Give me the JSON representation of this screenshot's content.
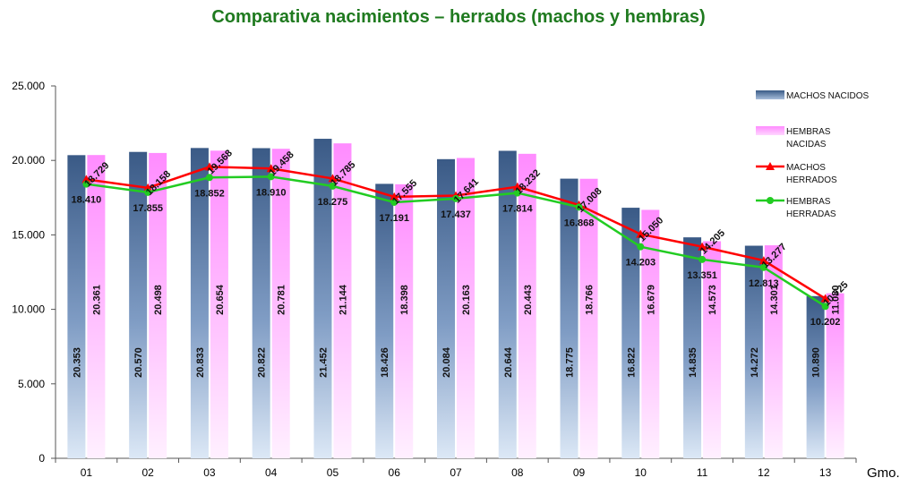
{
  "chart_data": {
    "type": "bar",
    "title": "Comparativa nacimientos – herrados (machos y hembras)",
    "xlabel": "Gmo.",
    "ylabel": "",
    "ylim": [
      0,
      25000
    ],
    "yticks": [
      0,
      5000,
      10000,
      15000,
      20000,
      25000
    ],
    "ytick_labels": [
      "0",
      "5.000",
      "10.000",
      "15.000",
      "20.000",
      "25.000"
    ],
    "categories": [
      "01",
      "02",
      "03",
      "04",
      "05",
      "06",
      "07",
      "08",
      "09",
      "10",
      "11",
      "12",
      "13"
    ],
    "legend_position": "right",
    "series": [
      {
        "name": "MACHOS NACIDOS",
        "kind": "bar",
        "color": "#3d5f8c",
        "values": [
          20353,
          20570,
          20833,
          20822,
          21452,
          18426,
          20084,
          20644,
          18775,
          16822,
          14835,
          14272,
          10890
        ],
        "labels": [
          "20.353",
          "20.570",
          "20.833",
          "20.822",
          "21.452",
          "18.426",
          "20.084",
          "20.644",
          "18.775",
          "16.822",
          "14.835",
          "14.272",
          "10.890"
        ]
      },
      {
        "name": "HEMBRAS NACIDAS",
        "kind": "bar",
        "color": "#ff8cff",
        "values": [
          20361,
          20498,
          20654,
          20781,
          21144,
          18398,
          20163,
          20443,
          18766,
          16679,
          14573,
          14301,
          11080
        ],
        "labels": [
          "20.361",
          "20.498",
          "20.654",
          "20.781",
          "21.144",
          "18.398",
          "20.163",
          "20.443",
          "18.766",
          "16.679",
          "14.573",
          "14.301",
          "11.080"
        ]
      },
      {
        "name": "MACHOS HERRADOS",
        "kind": "line",
        "color": "#ff0000",
        "values": [
          18729,
          18158,
          19568,
          19458,
          18785,
          17555,
          17641,
          18232,
          17008,
          15050,
          14205,
          13277,
          10725
        ],
        "labels": [
          "18.729",
          "18.158",
          "19.568",
          "19.458",
          "18.785",
          "17.555",
          "17.641",
          "18.232",
          "17.008",
          "15.050",
          "14.205",
          "13.277",
          "10.725"
        ]
      },
      {
        "name": "HEMBRAS HERRADAS",
        "kind": "line",
        "color": "#22cc22",
        "values": [
          18410,
          17855,
          18852,
          18910,
          18275,
          17191,
          17437,
          17814,
          16868,
          14203,
          13351,
          12813,
          10202
        ],
        "labels": [
          "18.410",
          "17.855",
          "18.852",
          "18.910",
          "18.275",
          "17.191",
          "17.437",
          "17.814",
          "16.868",
          "14.203",
          "13.351",
          "12.813",
          "10.202"
        ]
      }
    ]
  }
}
